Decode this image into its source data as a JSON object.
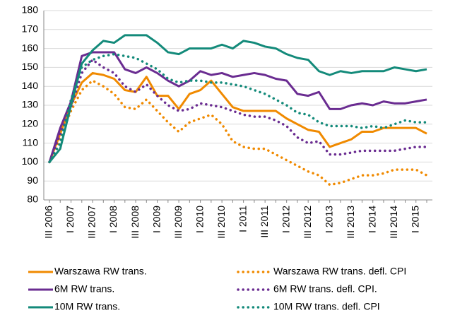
{
  "chart_data": {
    "type": "line",
    "categories": [
      "III 2006",
      null,
      "I 2007",
      null,
      "III 2007",
      null,
      "I 2008",
      null,
      "III 2008",
      null,
      "I 2009",
      null,
      "III 2009",
      null,
      "I 2010",
      null,
      "III 2010",
      null,
      "I 2011",
      null,
      "III 2011",
      null,
      "I 2012",
      null,
      "III 2012",
      null,
      "I 2013",
      null,
      "III 2013",
      null,
      "I 2014",
      null,
      "III 2014",
      null,
      "I 2015",
      null
    ],
    "ylim": [
      80,
      180
    ],
    "yticks": [
      80,
      90,
      100,
      110,
      120,
      130,
      140,
      150,
      160,
      170,
      180
    ],
    "grid": true,
    "series": [
      {
        "name": "Warszawa RW trans.",
        "color": "#f08a00",
        "dashed": false,
        "values": [
          100,
          115,
          130,
          142,
          147,
          146,
          144,
          138,
          137,
          145,
          135,
          135,
          128,
          136,
          138,
          143,
          136,
          129,
          127,
          127,
          127,
          127,
          123,
          120,
          117,
          116,
          108,
          110,
          112,
          116,
          116,
          118,
          118,
          118,
          118,
          115
        ]
      },
      {
        "name": "Warszawa RW trans. defl. CPI",
        "color": "#f08a00",
        "dashed": true,
        "values": [
          100,
          113,
          127,
          138,
          143,
          140,
          136,
          129,
          128,
          133,
          127,
          121,
          116,
          121,
          123,
          125,
          120,
          111,
          108,
          107,
          107,
          104,
          101,
          98,
          95,
          93,
          88,
          89,
          91,
          93,
          93,
          94,
          96,
          96,
          96,
          93
        ]
      },
      {
        "name": "6M RW trans.",
        "color": "#6a2c91",
        "dashed": false,
        "values": [
          100,
          118,
          132,
          156,
          158,
          158,
          158,
          149,
          147,
          150,
          147,
          143,
          140,
          143,
          148,
          146,
          147,
          145,
          146,
          147,
          146,
          144,
          143,
          136,
          135,
          137,
          128,
          128,
          130,
          131,
          130,
          132,
          131,
          131,
          132,
          133
        ]
      },
      {
        "name": "6M RW trans. defl. CPI.",
        "color": "#6a2c91",
        "dashed": true,
        "values": [
          100,
          115,
          129,
          147,
          154,
          150,
          147,
          140,
          137,
          141,
          135,
          130,
          127,
          128,
          131,
          130,
          129,
          127,
          125,
          124,
          124,
          122,
          119,
          113,
          110,
          111,
          104,
          104,
          105,
          106,
          106,
          106,
          106,
          107,
          108,
          108
        ]
      },
      {
        "name": "10M RW trans.",
        "color": "#138a7a",
        "dashed": false,
        "values": [
          100,
          107,
          130,
          152,
          159,
          164,
          163,
          167,
          167,
          167,
          163,
          158,
          157,
          160,
          160,
          160,
          162,
          160,
          164,
          163,
          161,
          160,
          157,
          155,
          154,
          148,
          146,
          148,
          147,
          148,
          148,
          148,
          150,
          149,
          148,
          149
        ]
      },
      {
        "name": "10M RW trans. defl. CPI",
        "color": "#138a7a",
        "dashed": true,
        "values": [
          100,
          110,
          133,
          150,
          154,
          156,
          157,
          156,
          155,
          152,
          149,
          144,
          142,
          143,
          143,
          142,
          142,
          141,
          140,
          138,
          136,
          133,
          130,
          126,
          125,
          121,
          119,
          119,
          119,
          118,
          119,
          118,
          120,
          122,
          121,
          121
        ]
      }
    ]
  }
}
